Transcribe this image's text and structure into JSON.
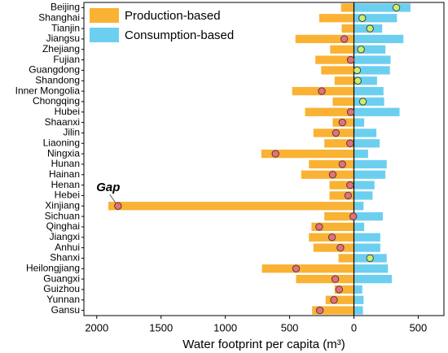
{
  "chart_data": {
    "type": "diverging-bar",
    "xlabel": "Water footprint per capita (m³)",
    "annotation": "Gap",
    "annotation_index": 19,
    "legend": "upper left",
    "categories": [
      "Beijing",
      "Shanghai",
      "Tianjin",
      "Jiangsu",
      "Zhejiang",
      "Fujian",
      "Guangdong",
      "Shandong",
      "Inner Mongolia",
      "Chongqing",
      "Hubei",
      "Shaanxi",
      "Jilin",
      "Liaoning",
      "Ningxia",
      "Hunan",
      "Hainan",
      "Henan",
      "Hebei",
      "Xinjiang",
      "Sichuan",
      "Qinghai",
      "Jiangxi",
      "Anhui",
      "Shanxi",
      "Heilongjiang",
      "Guangxi",
      "Guizhou",
      "Yunnan",
      "Gansu"
    ],
    "series": [
      {
        "name": "Production-based",
        "color": "#f9b233",
        "values": [
          -100,
          -270,
          -95,
          -455,
          -185,
          -300,
          -255,
          -150,
          -480,
          -165,
          -380,
          -165,
          -315,
          -230,
          -720,
          -350,
          -410,
          -190,
          -190,
          -1910,
          -230,
          -330,
          -350,
          -315,
          -120,
          -715,
          -450,
          -150,
          -220,
          -325
        ]
      },
      {
        "name": "Consumption-based",
        "color": "#6ccff0",
        "values": [
          440,
          335,
          220,
          385,
          245,
          285,
          280,
          180,
          230,
          235,
          355,
          80,
          175,
          200,
          110,
          255,
          245,
          160,
          145,
          75,
          225,
          80,
          205,
          205,
          255,
          265,
          295,
          65,
          75,
          70
        ]
      }
    ],
    "markers": {
      "positive_color": "#c9f06b",
      "negative_color": "#ef6b78",
      "values": [
        330,
        65,
        125,
        -75,
        55,
        -25,
        25,
        30,
        -250,
        70,
        -25,
        -90,
        -140,
        -30,
        -610,
        -90,
        -165,
        -30,
        -45,
        -1835,
        -5,
        -270,
        -170,
        -105,
        125,
        -450,
        -145,
        -115,
        -155,
        -265
      ]
    },
    "xlim": [
      -2100,
      700
    ],
    "xticks": [
      {
        "value": -2000,
        "label": "2000"
      },
      {
        "value": -1500,
        "label": "1500"
      },
      {
        "value": -1000,
        "label": "1000"
      },
      {
        "value": -500,
        "label": "500"
      },
      0,
      500
    ]
  }
}
